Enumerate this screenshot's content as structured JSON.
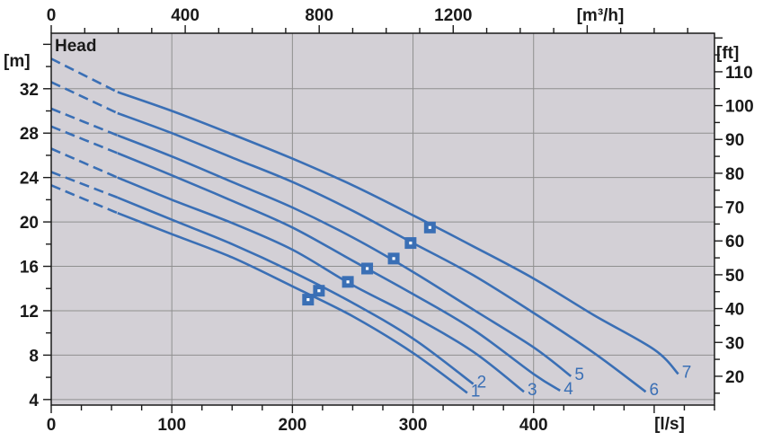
{
  "chart_data": {
    "type": "line",
    "title": "",
    "plot_label": "Head",
    "colors": {
      "plot_bg": "#d3d0d6",
      "grid": "#8f8f8f",
      "curve": "#3a6fb5",
      "axis": "#1a1a1a"
    },
    "axes": {
      "x_bottom": {
        "unit": "[l/s]",
        "range": [
          0,
          550
        ],
        "ticks": [
          0,
          100,
          200,
          300,
          400
        ]
      },
      "x_top": {
        "unit": "[m³/h]",
        "range": [
          0,
          1980
        ],
        "ticks": [
          0,
          400,
          800,
          1200
        ]
      },
      "y_left": {
        "unit": "[m]",
        "range": [
          3.5,
          37
        ],
        "ticks": [
          4,
          8,
          12,
          16,
          20,
          24,
          28,
          32
        ]
      },
      "y_right": {
        "unit": "[ft]",
        "ticks": [
          20,
          30,
          40,
          50,
          60,
          70,
          80,
          90,
          100,
          110
        ]
      }
    },
    "grid": true,
    "dash_until_x": 55,
    "series": [
      {
        "name": "1",
        "points": [
          [
            0,
            23.3
          ],
          [
            55,
            20.8
          ],
          [
            100,
            18.9
          ],
          [
            150,
            16.8
          ],
          [
            200,
            14.2
          ],
          [
            250,
            11.5
          ],
          [
            300,
            8.2
          ],
          [
            345,
            4.6
          ]
        ],
        "bep": [
          213,
          13.0
        ]
      },
      {
        "name": "2",
        "points": [
          [
            0,
            24.5
          ],
          [
            55,
            22.2
          ],
          [
            100,
            20.2
          ],
          [
            150,
            18.0
          ],
          [
            200,
            15.5
          ],
          [
            250,
            12.7
          ],
          [
            300,
            9.5
          ],
          [
            350,
            5.4
          ]
        ],
        "bep": [
          222,
          13.8
        ]
      },
      {
        "name": "3",
        "points": [
          [
            0,
            26.6
          ],
          [
            55,
            24.0
          ],
          [
            100,
            22.0
          ],
          [
            150,
            19.9
          ],
          [
            200,
            17.5
          ],
          [
            250,
            14.3
          ],
          [
            300,
            11.5
          ],
          [
            350,
            8.3
          ],
          [
            392,
            4.7
          ]
        ],
        "bep": [
          246,
          14.6
        ]
      },
      {
        "name": "4",
        "points": [
          [
            0,
            28.6
          ],
          [
            55,
            26.2
          ],
          [
            100,
            24.2
          ],
          [
            150,
            21.9
          ],
          [
            200,
            19.5
          ],
          [
            250,
            16.5
          ],
          [
            300,
            13.5
          ],
          [
            350,
            10.3
          ],
          [
            400,
            6.3
          ],
          [
            422,
            4.8
          ]
        ],
        "bep": [
          262,
          15.8
        ]
      },
      {
        "name": "5",
        "points": [
          [
            0,
            30.2
          ],
          [
            55,
            27.8
          ],
          [
            100,
            25.9
          ],
          [
            150,
            23.6
          ],
          [
            200,
            21.3
          ],
          [
            250,
            18.6
          ],
          [
            300,
            15.5
          ],
          [
            350,
            12.1
          ],
          [
            400,
            8.7
          ],
          [
            431,
            6.1
          ]
        ],
        "bep": [
          284,
          16.7
        ]
      },
      {
        "name": "6",
        "points": [
          [
            0,
            32.6
          ],
          [
            55,
            29.8
          ],
          [
            100,
            28.0
          ],
          [
            150,
            25.8
          ],
          [
            200,
            23.6
          ],
          [
            250,
            21.0
          ],
          [
            300,
            18.1
          ],
          [
            350,
            15.2
          ],
          [
            400,
            11.8
          ],
          [
            450,
            8.2
          ],
          [
            493,
            4.7
          ]
        ],
        "bep": [
          298,
          18.1
        ]
      },
      {
        "name": "7",
        "points": [
          [
            0,
            34.7
          ],
          [
            55,
            31.7
          ],
          [
            100,
            30.0
          ],
          [
            150,
            27.9
          ],
          [
            200,
            25.7
          ],
          [
            250,
            23.3
          ],
          [
            300,
            20.6
          ],
          [
            350,
            17.8
          ],
          [
            400,
            14.9
          ],
          [
            450,
            11.6
          ],
          [
            500,
            8.5
          ],
          [
            520,
            6.3
          ]
        ],
        "bep": [
          314,
          19.5
        ]
      }
    ]
  }
}
